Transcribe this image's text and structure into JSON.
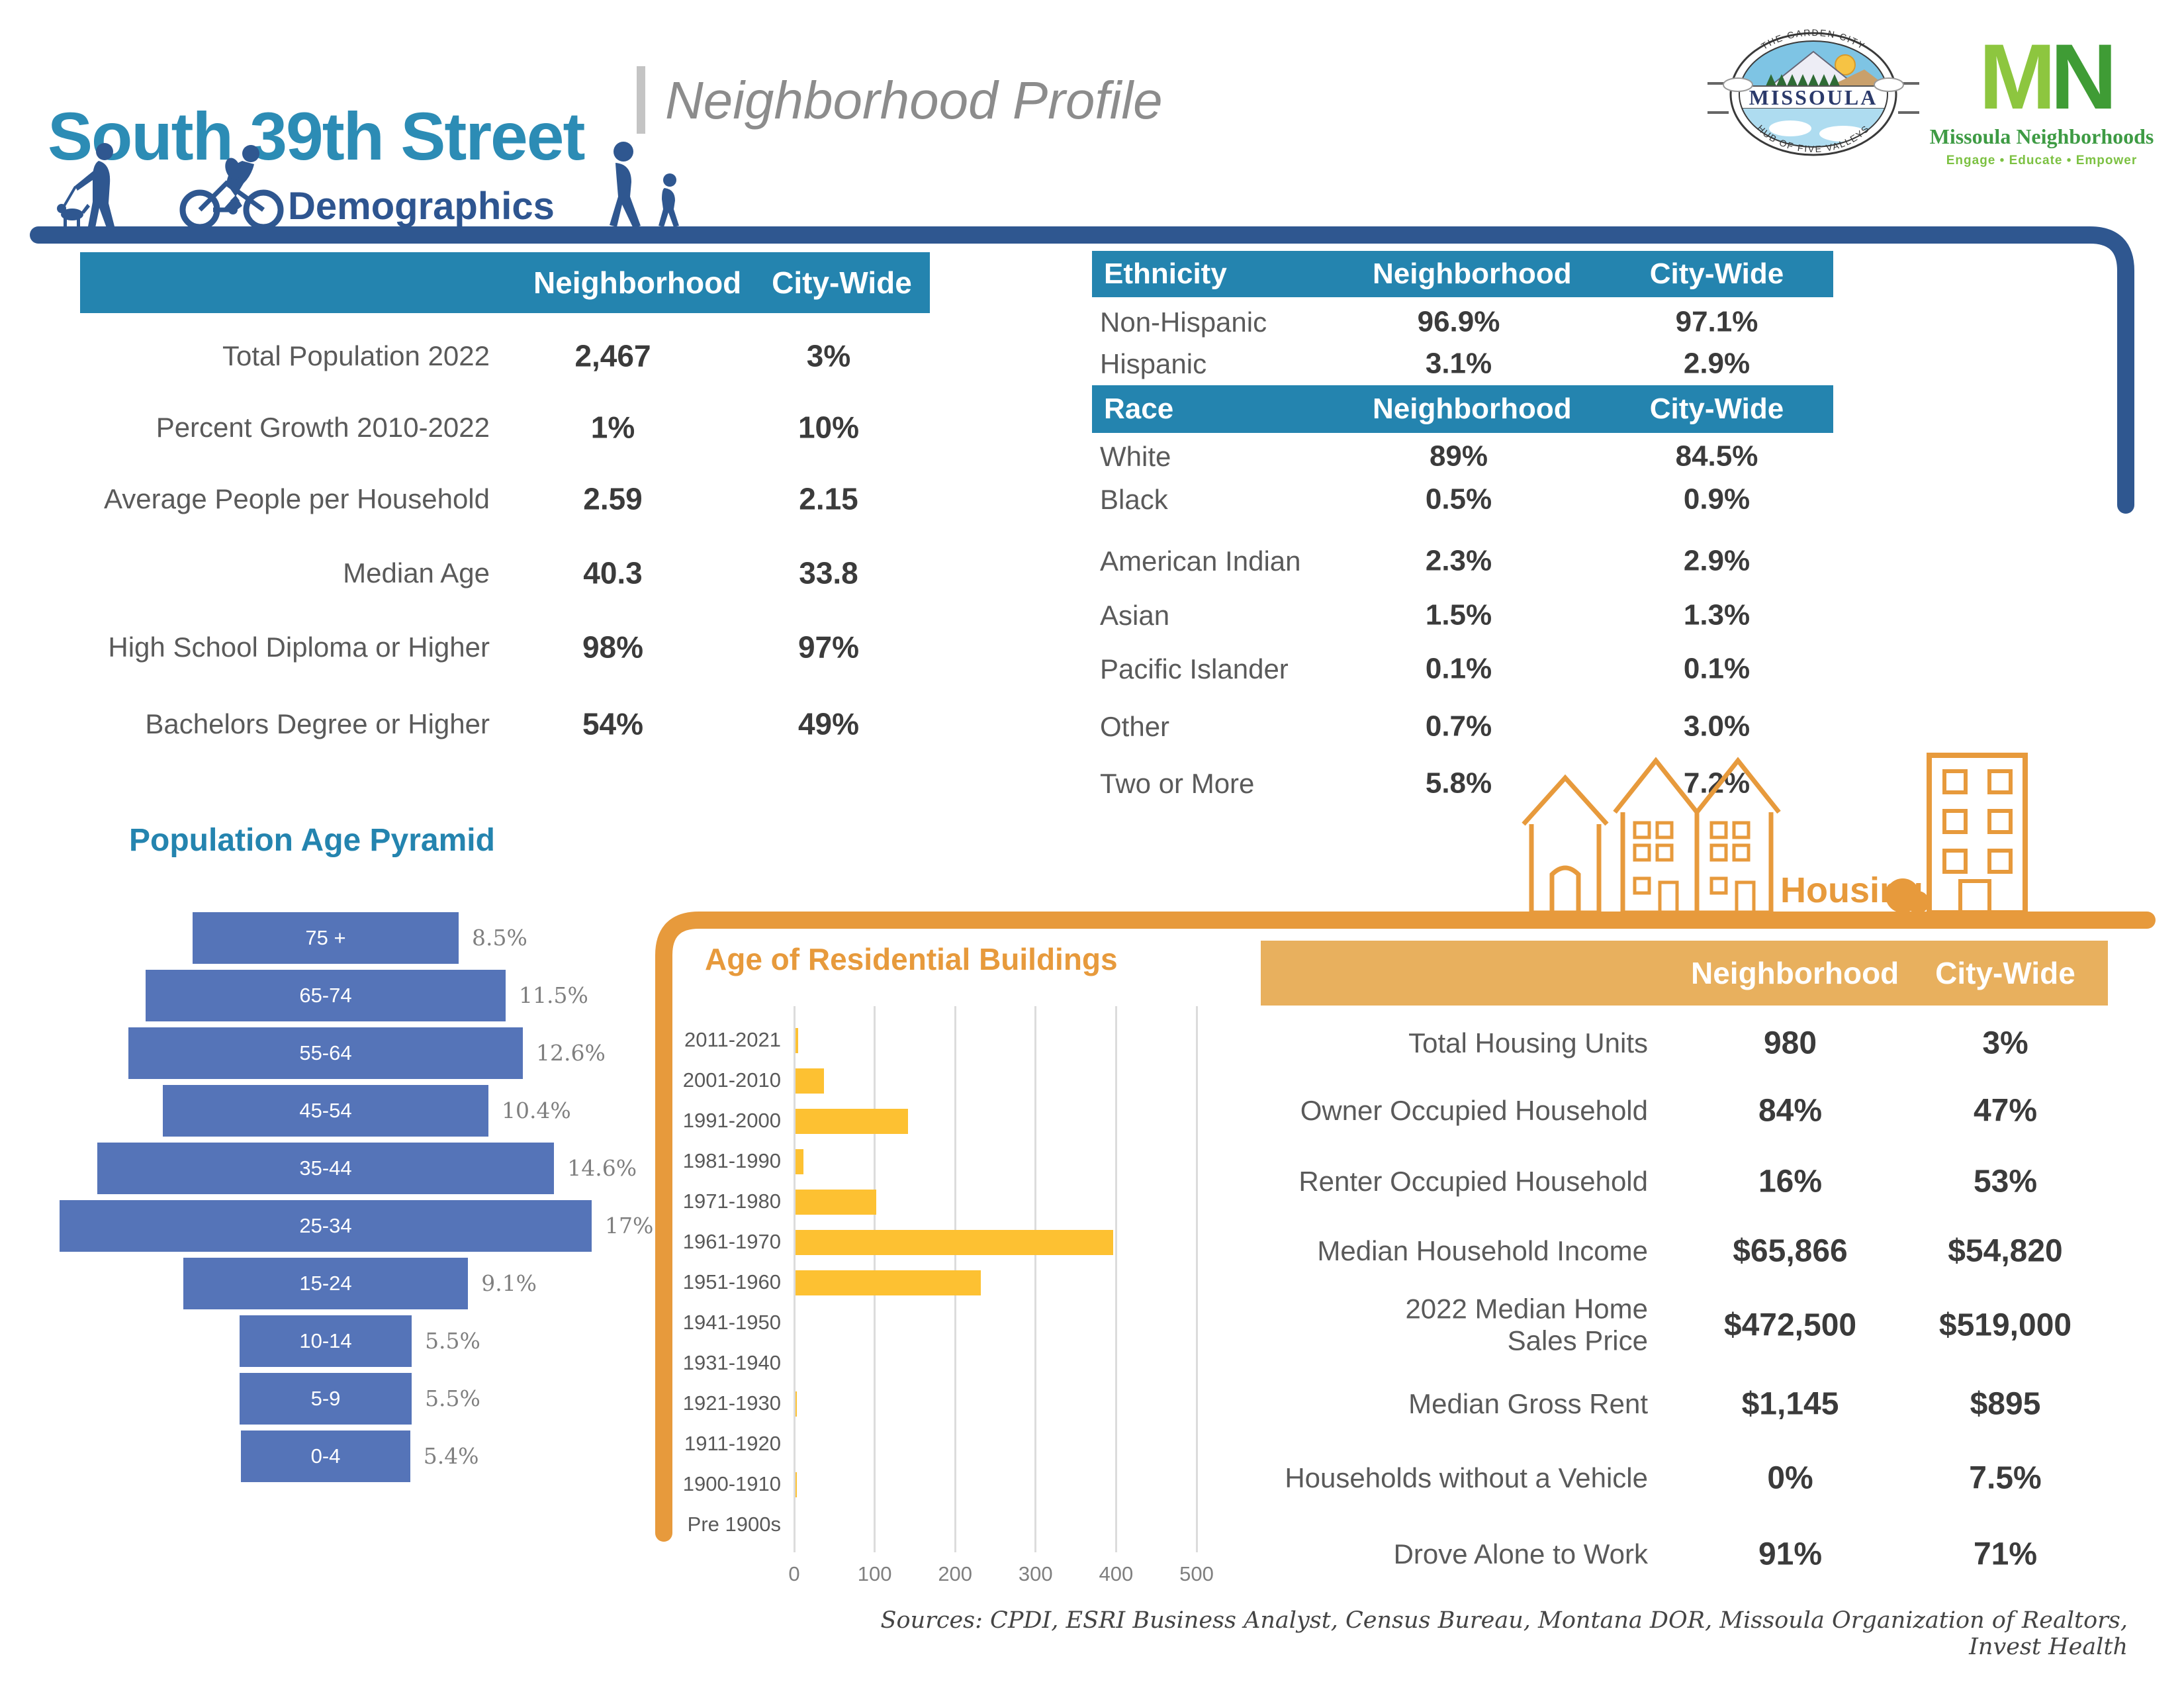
{
  "header": {
    "title": "South 39th Street",
    "subtitle": "Neighborhood Profile"
  },
  "logos": {
    "seal": {
      "name": "MISSOULA",
      "top": "THE GARDEN CITY",
      "bottom": "HUB OF FIVE VALLEYS"
    },
    "mn": {
      "m": "M",
      "n": "N",
      "name": "Missoula Neighborhoods",
      "tagline": "Engage • Educate • Empower"
    }
  },
  "icons": [
    "pedestrian-dog-icon",
    "cyclist-icon",
    "adult-child-icon",
    "house-icon",
    "townhouses-icon",
    "bush-icon",
    "apartment-building-icon"
  ],
  "demographics": {
    "section_label": "Demographics",
    "columns": [
      "Neighborhood",
      "City-Wide"
    ],
    "rows": [
      {
        "label": "Total Population 2022",
        "neighborhood": "2,467",
        "city": "3%"
      },
      {
        "label": "Percent Growth 2010-2022",
        "neighborhood": "1%",
        "city": "10%"
      },
      {
        "label": "Average People per Household",
        "neighborhood": "2.59",
        "city": "2.15"
      },
      {
        "label": "Median Age",
        "neighborhood": "40.3",
        "city": "33.8"
      },
      {
        "label": "High School Diploma or Higher",
        "neighborhood": "98%",
        "city": "97%"
      },
      {
        "label": "Bachelors Degree or Higher",
        "neighborhood": "54%",
        "city": "49%"
      }
    ]
  },
  "ethnicity": {
    "header": "Ethnicity",
    "columns": [
      "Neighborhood",
      "City-Wide"
    ],
    "rows": [
      {
        "label": "Non-Hispanic",
        "neighborhood": "96.9%",
        "city": "97.1%"
      },
      {
        "label": "Hispanic",
        "neighborhood": "3.1%",
        "city": "2.9%"
      }
    ]
  },
  "race": {
    "header": "Race",
    "columns": [
      "Neighborhood",
      "City-Wide"
    ],
    "rows": [
      {
        "label": "White",
        "neighborhood": "89%",
        "city": "84.5%"
      },
      {
        "label": "Black",
        "neighborhood": "0.5%",
        "city": "0.9%"
      },
      {
        "label": "American Indian",
        "neighborhood": "2.3%",
        "city": "2.9%"
      },
      {
        "label": "Asian",
        "neighborhood": "1.5%",
        "city": "1.3%"
      },
      {
        "label": "Pacific Islander",
        "neighborhood": "0.1%",
        "city": "0.1%"
      },
      {
        "label": "Other",
        "neighborhood": "0.7%",
        "city": "3.0%"
      },
      {
        "label": "Two or More",
        "neighborhood": "5.8%",
        "city": "7.2%"
      }
    ]
  },
  "housing": {
    "section_label": "Housing",
    "columns": [
      "Neighborhood",
      "City-Wide"
    ],
    "rows": [
      {
        "label": "Total Housing Units",
        "neighborhood": "980",
        "city": "3%"
      },
      {
        "label": "Owner Occupied Household",
        "neighborhood": "84%",
        "city": "47%"
      },
      {
        "label": "Renter Occupied Household",
        "neighborhood": "16%",
        "city": "53%"
      },
      {
        "label": "Median Household Income",
        "neighborhood": "$65,866",
        "city": "$54,820"
      },
      {
        "label": "2022 Median Home Sales Price",
        "neighborhood": "$472,500",
        "city": "$519,000"
      },
      {
        "label": "Median Gross Rent",
        "neighborhood": "$1,145",
        "city": "$895"
      },
      {
        "label": "Households without a Vehicle",
        "neighborhood": "0%",
        "city": "7.5%"
      },
      {
        "label": "Drove Alone to Work",
        "neighborhood": "91%",
        "city": "71%"
      }
    ]
  },
  "chart_data": [
    {
      "type": "bar",
      "orientation": "horizontal-centered",
      "title": "Population Age Pyramid",
      "categories": [
        "75 +",
        "65-74",
        "55-64",
        "45-54",
        "35-44",
        "25-34",
        "15-24",
        "10-14",
        "5-9",
        "0-4"
      ],
      "values": [
        8.5,
        11.5,
        12.6,
        10.4,
        14.6,
        17,
        9.1,
        5.5,
        5.5,
        5.4
      ],
      "labels": [
        "8.5%",
        "11.5%",
        "12.6%",
        "10.4%",
        "14.6%",
        "17%",
        "9.1%",
        "5.5%",
        "5.5%",
        "5.4%"
      ],
      "bar_color": "#5574B8",
      "grid": false,
      "legend": "none"
    },
    {
      "type": "bar",
      "orientation": "horizontal",
      "title": "Age of Residential Buildings",
      "categories": [
        "2011-2021",
        "2001-2010",
        "1991-2000",
        "1981-1990",
        "1971-1980",
        "1961-1970",
        "1951-1960",
        "1941-1950",
        "1931-1940",
        "1921-1930",
        "1911-1920",
        "1900-1910",
        "Pre 1900s"
      ],
      "values": [
        3,
        35,
        140,
        10,
        100,
        395,
        230,
        0,
        0,
        2,
        0,
        2,
        0
      ],
      "xlabel": "",
      "ylabel": "",
      "xlim": [
        0,
        500
      ],
      "xticks": [
        0,
        100,
        200,
        300,
        400,
        500
      ],
      "bar_color": "#FDC132",
      "grid": true,
      "legend": "none"
    }
  ],
  "footer": {
    "sources": "Sources: CPDI, ESRI Business Analyst, Census Bureau, Montana DOR, Missoula Organization of Realtors, Invest Health"
  },
  "colors": {
    "teal_band": "#2484AF",
    "title_teal": "#2C8CB5",
    "navy": "#2F5790",
    "pyramid_blue": "#5574B8",
    "orange": "#E79A3C",
    "housing_band": "#E8B05E",
    "chart_yellow": "#FDC132"
  }
}
